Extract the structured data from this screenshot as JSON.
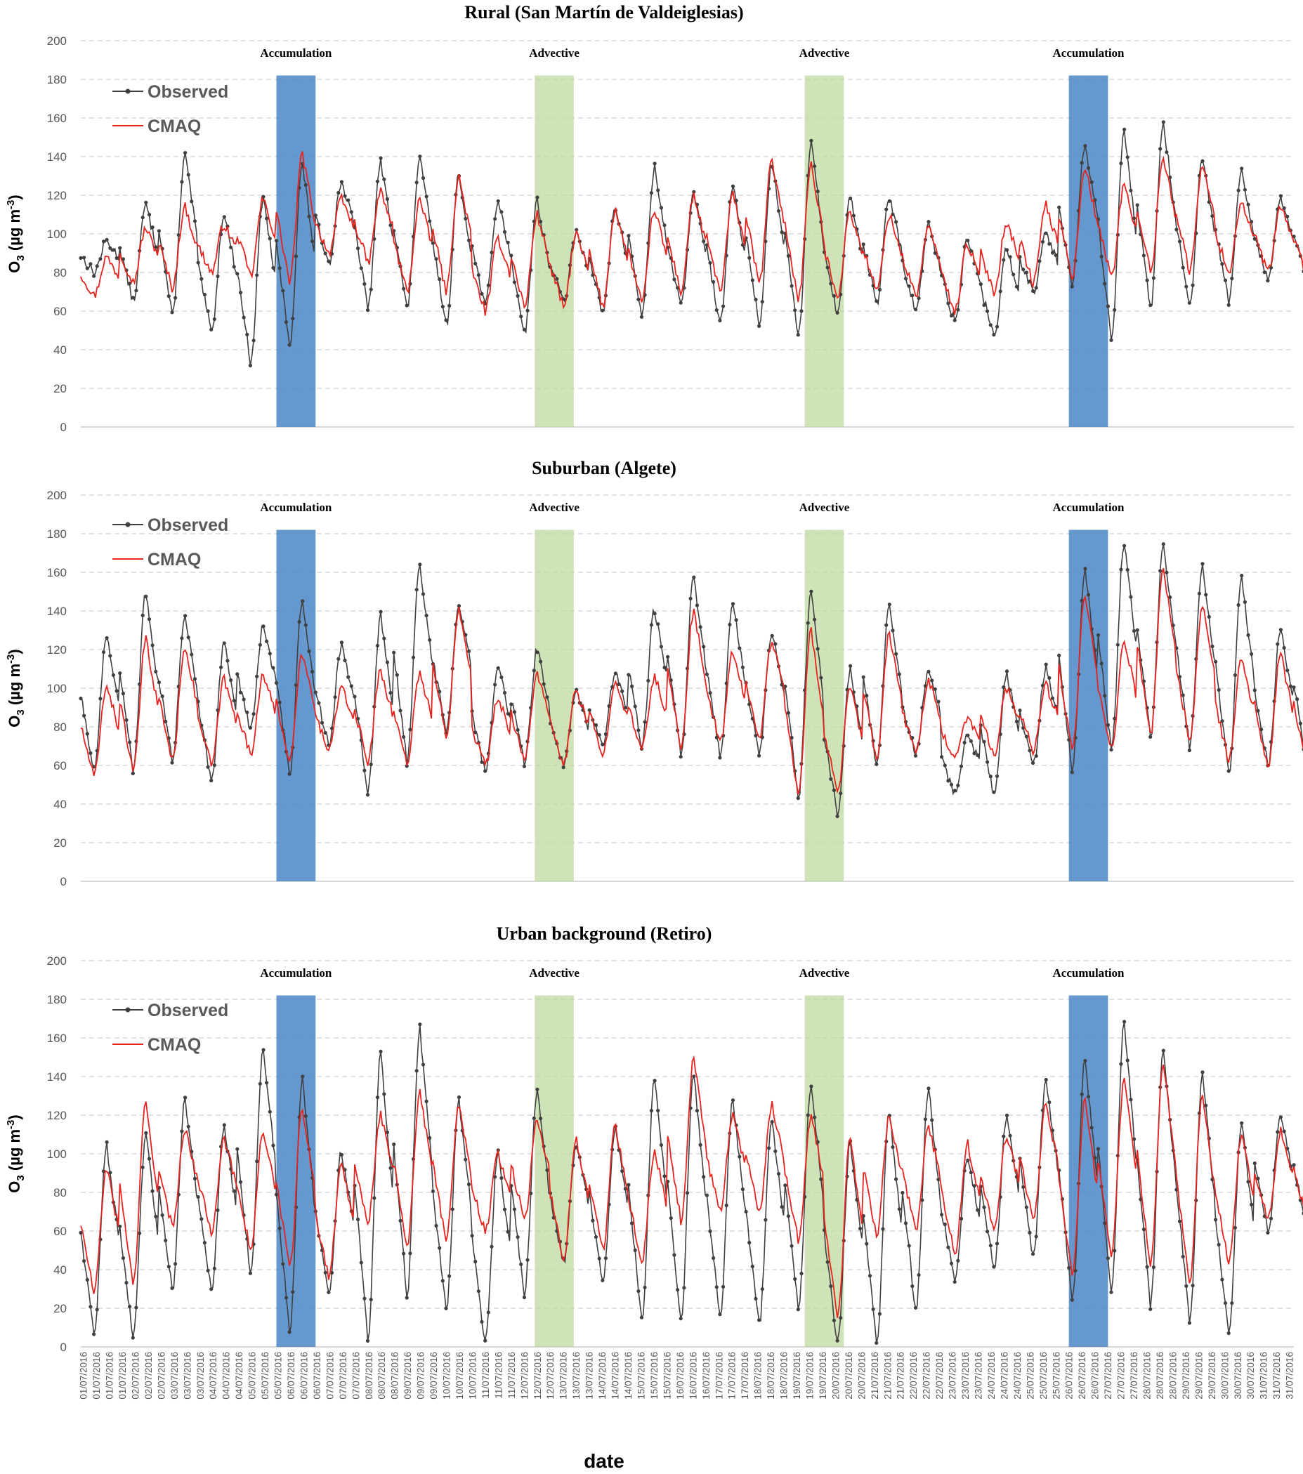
{
  "colors": {
    "observed": "#404040",
    "cmaq": "#e8231e",
    "accumulation": "#4a86c5",
    "advective": "#b9d99a"
  },
  "legend": {
    "observed": "Observed",
    "cmaq": "CMAQ"
  },
  "x_axis": {
    "title": "date",
    "tick_labels": [
      "01/07/2016",
      "01/07/2016",
      "01/07/2016",
      "01/07/2016",
      "02/07/2016",
      "02/07/2016",
      "02/07/2016",
      "03/07/2016",
      "03/07/2016",
      "03/07/2016",
      "04/07/2016",
      "04/07/2016",
      "04/07/2016",
      "05/07/2016",
      "05/07/2016",
      "05/07/2016",
      "06/07/2016",
      "06/07/2016",
      "06/07/2016",
      "07/07/2016",
      "07/07/2016",
      "07/07/2016",
      "08/07/2016",
      "08/07/2016",
      "08/07/2016",
      "09/07/2016",
      "09/07/2016",
      "09/07/2016",
      "10/07/2016",
      "10/07/2016",
      "10/07/2016",
      "11/07/2016",
      "11/07/2016",
      "11/07/2016",
      "12/07/2016",
      "12/07/2016",
      "12/07/2016",
      "13/07/2016",
      "13/07/2016",
      "13/07/2016",
      "14/07/2016",
      "14/07/2016",
      "14/07/2016",
      "15/07/2016",
      "15/07/2016",
      "15/07/2016",
      "16/07/2016",
      "16/07/2016",
      "16/07/2016",
      "17/07/2016",
      "17/07/2016",
      "17/07/2016",
      "18/07/2016",
      "18/07/2016",
      "18/07/2016",
      "19/07/2016",
      "19/07/2016",
      "19/07/2016",
      "20/07/2016",
      "20/07/2016",
      "20/07/2016",
      "21/07/2016",
      "21/07/2016",
      "21/07/2016",
      "22/07/2016",
      "22/07/2016",
      "22/07/2016",
      "23/07/2016",
      "23/07/2016",
      "23/07/2016",
      "24/07/2016",
      "24/07/2016",
      "24/07/2016",
      "25/07/2016",
      "25/07/2016",
      "25/07/2016",
      "26/07/2016",
      "26/07/2016",
      "26/07/2016",
      "27/07/2016",
      "27/07/2016",
      "27/07/2016",
      "28/07/2016",
      "28/07/2016",
      "28/07/2016",
      "29/07/2016",
      "29/07/2016",
      "29/07/2016",
      "30/07/2016",
      "30/07/2016",
      "30/07/2016",
      "31/07/2016",
      "31/07/2016",
      "31/07/2016"
    ]
  },
  "chart_data": [
    {
      "type": "line",
      "title": "Rural (San Martín de Valdeiglesias)",
      "ylabel": "O3 (µg m-3)",
      "ylim": [
        0,
        200
      ],
      "yticks": [
        0,
        20,
        40,
        60,
        80,
        100,
        120,
        140,
        160,
        180,
        200
      ],
      "grid": true,
      "legend_position": "top-left",
      "x_unit": "day of July 2016 (1.0 = 01/07 00:00)",
      "episodes": [
        {
          "label": "Accumulation",
          "type": "accumulation",
          "start": 6.0,
          "end": 7.0
        },
        {
          "label": "Advective",
          "type": "advective",
          "start": 12.6,
          "end": 13.6
        },
        {
          "label": "Advective",
          "type": "advective",
          "start": 19.5,
          "end": 20.5
        },
        {
          "label": "Accumulation",
          "type": "accumulation",
          "start": 26.25,
          "end": 27.25
        }
      ],
      "series": [
        {
          "name": "Observed",
          "min": [
            80,
            65,
            57,
            49,
            34,
            43,
            85,
            62,
            61,
            53,
            63,
            49,
            65,
            58,
            57,
            62,
            53,
            53,
            47,
            58,
            64,
            60,
            54,
            47,
            70,
            75,
            45,
            61,
            62,
            65,
            75,
            75
          ],
          "max": [
            96,
            115,
            141,
            111,
            119,
            136,
            127,
            137,
            139,
            130,
            117,
            117,
            100,
            114,
            134,
            121,
            125,
            137,
            147,
            120,
            119,
            104,
            98,
            92,
            101,
            145,
            155,
            158,
            139,
            132,
            119,
            119
          ]
        },
        {
          "name": "CMAQ",
          "min": [
            68,
            75,
            72,
            80,
            78,
            75,
            90,
            85,
            70,
            70,
            60,
            62,
            62,
            62,
            64,
            70,
            70,
            74,
            66,
            68,
            70,
            68,
            60,
            70,
            74,
            78,
            78,
            80,
            80,
            80,
            80,
            78
          ],
          "max": [
            88,
            103,
            114,
            105,
            118,
            141,
            118,
            122,
            118,
            129,
            98,
            110,
            100,
            113,
            113,
            120,
            120,
            138,
            135,
            112,
            110,
            103,
            95,
            106,
            115,
            135,
            125,
            140,
            136,
            117,
            114,
            114
          ]
        }
      ]
    },
    {
      "type": "line",
      "title": "Suburban (Algete)",
      "ylabel": "O3 (µg m-3)",
      "ylim": [
        0,
        200
      ],
      "yticks": [
        0,
        20,
        40,
        60,
        80,
        100,
        120,
        140,
        160,
        180,
        200
      ],
      "grid": true,
      "legend_position": "top-left",
      "x_unit": "day of July 2016 (1.0 = 01/07 00:00)",
      "episodes": [
        {
          "label": "Accumulation",
          "type": "accumulation",
          "start": 6.0,
          "end": 7.0
        },
        {
          "label": "Advective",
          "type": "advective",
          "start": 12.6,
          "end": 13.6
        },
        {
          "label": "Advective",
          "type": "advective",
          "start": 19.5,
          "end": 20.5
        },
        {
          "label": "Accumulation",
          "type": "accumulation",
          "start": 26.25,
          "end": 27.25
        }
      ],
      "series": [
        {
          "name": "Observed",
          "min": [
            58,
            57,
            62,
            51,
            78,
            56,
            70,
            46,
            62,
            78,
            56,
            62,
            60,
            70,
            70,
            65,
            65,
            67,
            43,
            35,
            60,
            66,
            45,
            45,
            60,
            57,
            68,
            75,
            70,
            55,
            60,
            60
          ],
          "max": [
            127,
            149,
            139,
            124,
            132,
            145,
            122,
            138,
            165,
            144,
            112,
            120,
            99,
            108,
            141,
            158,
            144,
            129,
            150,
            109,
            143,
            110,
            77,
            108,
            110,
            162,
            176,
            173,
            162,
            158,
            131,
            138
          ]
        },
        {
          "name": "CMAQ",
          "min": [
            54,
            56,
            62,
            60,
            65,
            62,
            68,
            62,
            62,
            75,
            60,
            62,
            60,
            65,
            68,
            70,
            72,
            74,
            44,
            47,
            63,
            66,
            65,
            66,
            68,
            66,
            68,
            75,
            72,
            62,
            58,
            58
          ],
          "max": [
            102,
            125,
            122,
            105,
            108,
            118,
            100,
            110,
            108,
            142,
            95,
            108,
            100,
            105,
            106,
            140,
            118,
            125,
            130,
            100,
            128,
            105,
            85,
            100,
            102,
            148,
            125,
            163,
            143,
            115,
            118,
            118
          ]
        }
      ]
    },
    {
      "type": "line",
      "title": "Urban background (Retiro)",
      "ylabel": "O3 (µg m-3)",
      "ylim": [
        0,
        200
      ],
      "yticks": [
        0,
        20,
        40,
        60,
        80,
        100,
        120,
        140,
        160,
        180,
        200
      ],
      "grid": true,
      "legend_position": "top-left",
      "x_unit": "day of July 2016 (1.0 = 01/07 00:00)",
      "episodes": [
        {
          "label": "Accumulation",
          "type": "accumulation",
          "start": 6.0,
          "end": 7.0
        },
        {
          "label": "Advective",
          "type": "advective",
          "start": 12.6,
          "end": 13.6
        },
        {
          "label": "Advective",
          "type": "advective",
          "start": 19.5,
          "end": 20.5
        },
        {
          "label": "Accumulation",
          "type": "accumulation",
          "start": 26.25,
          "end": 27.25
        }
      ],
      "series": [
        {
          "name": "Observed",
          "min": [
            7,
            4,
            29,
            29,
            38,
            8,
            28,
            4,
            27,
            20,
            2,
            27,
            44,
            35,
            13,
            13,
            16,
            12,
            20,
            2,
            2,
            18,
            36,
            40,
            46,
            23,
            28,
            22,
            14,
            6,
            60,
            60
          ],
          "max": [
            104,
            110,
            128,
            114,
            154,
            140,
            101,
            152,
            165,
            127,
            100,
            133,
            105,
            113,
            140,
            142,
            128,
            118,
            136,
            105,
            122,
            134,
            98,
            118,
            138,
            149,
            167,
            155,
            141,
            117,
            121,
            121
          ]
        },
        {
          "name": "CMAQ",
          "min": [
            28,
            32,
            62,
            60,
            50,
            40,
            36,
            65,
            52,
            55,
            60,
            65,
            45,
            50,
            44,
            65,
            70,
            70,
            55,
            15,
            58,
            60,
            48,
            60,
            65,
            36,
            48,
            42,
            34,
            44,
            66,
            66
          ],
          "max": [
            93,
            126,
            113,
            108,
            112,
            124,
            95,
            120,
            132,
            126,
            100,
            118,
            108,
            114,
            102,
            149,
            120,
            125,
            120,
            108,
            120,
            115,
            105,
            110,
            125,
            128,
            137,
            147,
            131,
            110,
            112,
            112
          ]
        }
      ]
    }
  ]
}
